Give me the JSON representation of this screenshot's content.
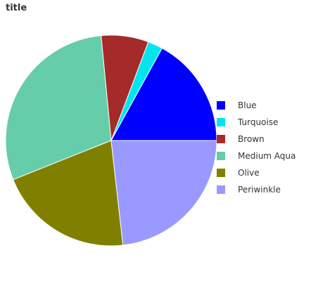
{
  "chart_data": {
    "type": "pie",
    "title": "title",
    "start_angle_deg": 0,
    "direction": "clockwise-sorted-by-value",
    "series": [
      {
        "name": "Blue",
        "value": 16.4,
        "color": "#0000ff"
      },
      {
        "name": "Turquoise",
        "value": 2.2,
        "color": "#00e5ee"
      },
      {
        "name": "Brown",
        "value": 7.0,
        "color": "#a52a2a"
      },
      {
        "name": "Medium Aqua",
        "value": 28.5,
        "color": "#66cdaa"
      },
      {
        "name": "Olive",
        "value": 20.0,
        "color": "#808000"
      },
      {
        "name": "Periwinkle",
        "value": 22.4,
        "color": "#9999ff"
      }
    ],
    "legend": "right"
  }
}
